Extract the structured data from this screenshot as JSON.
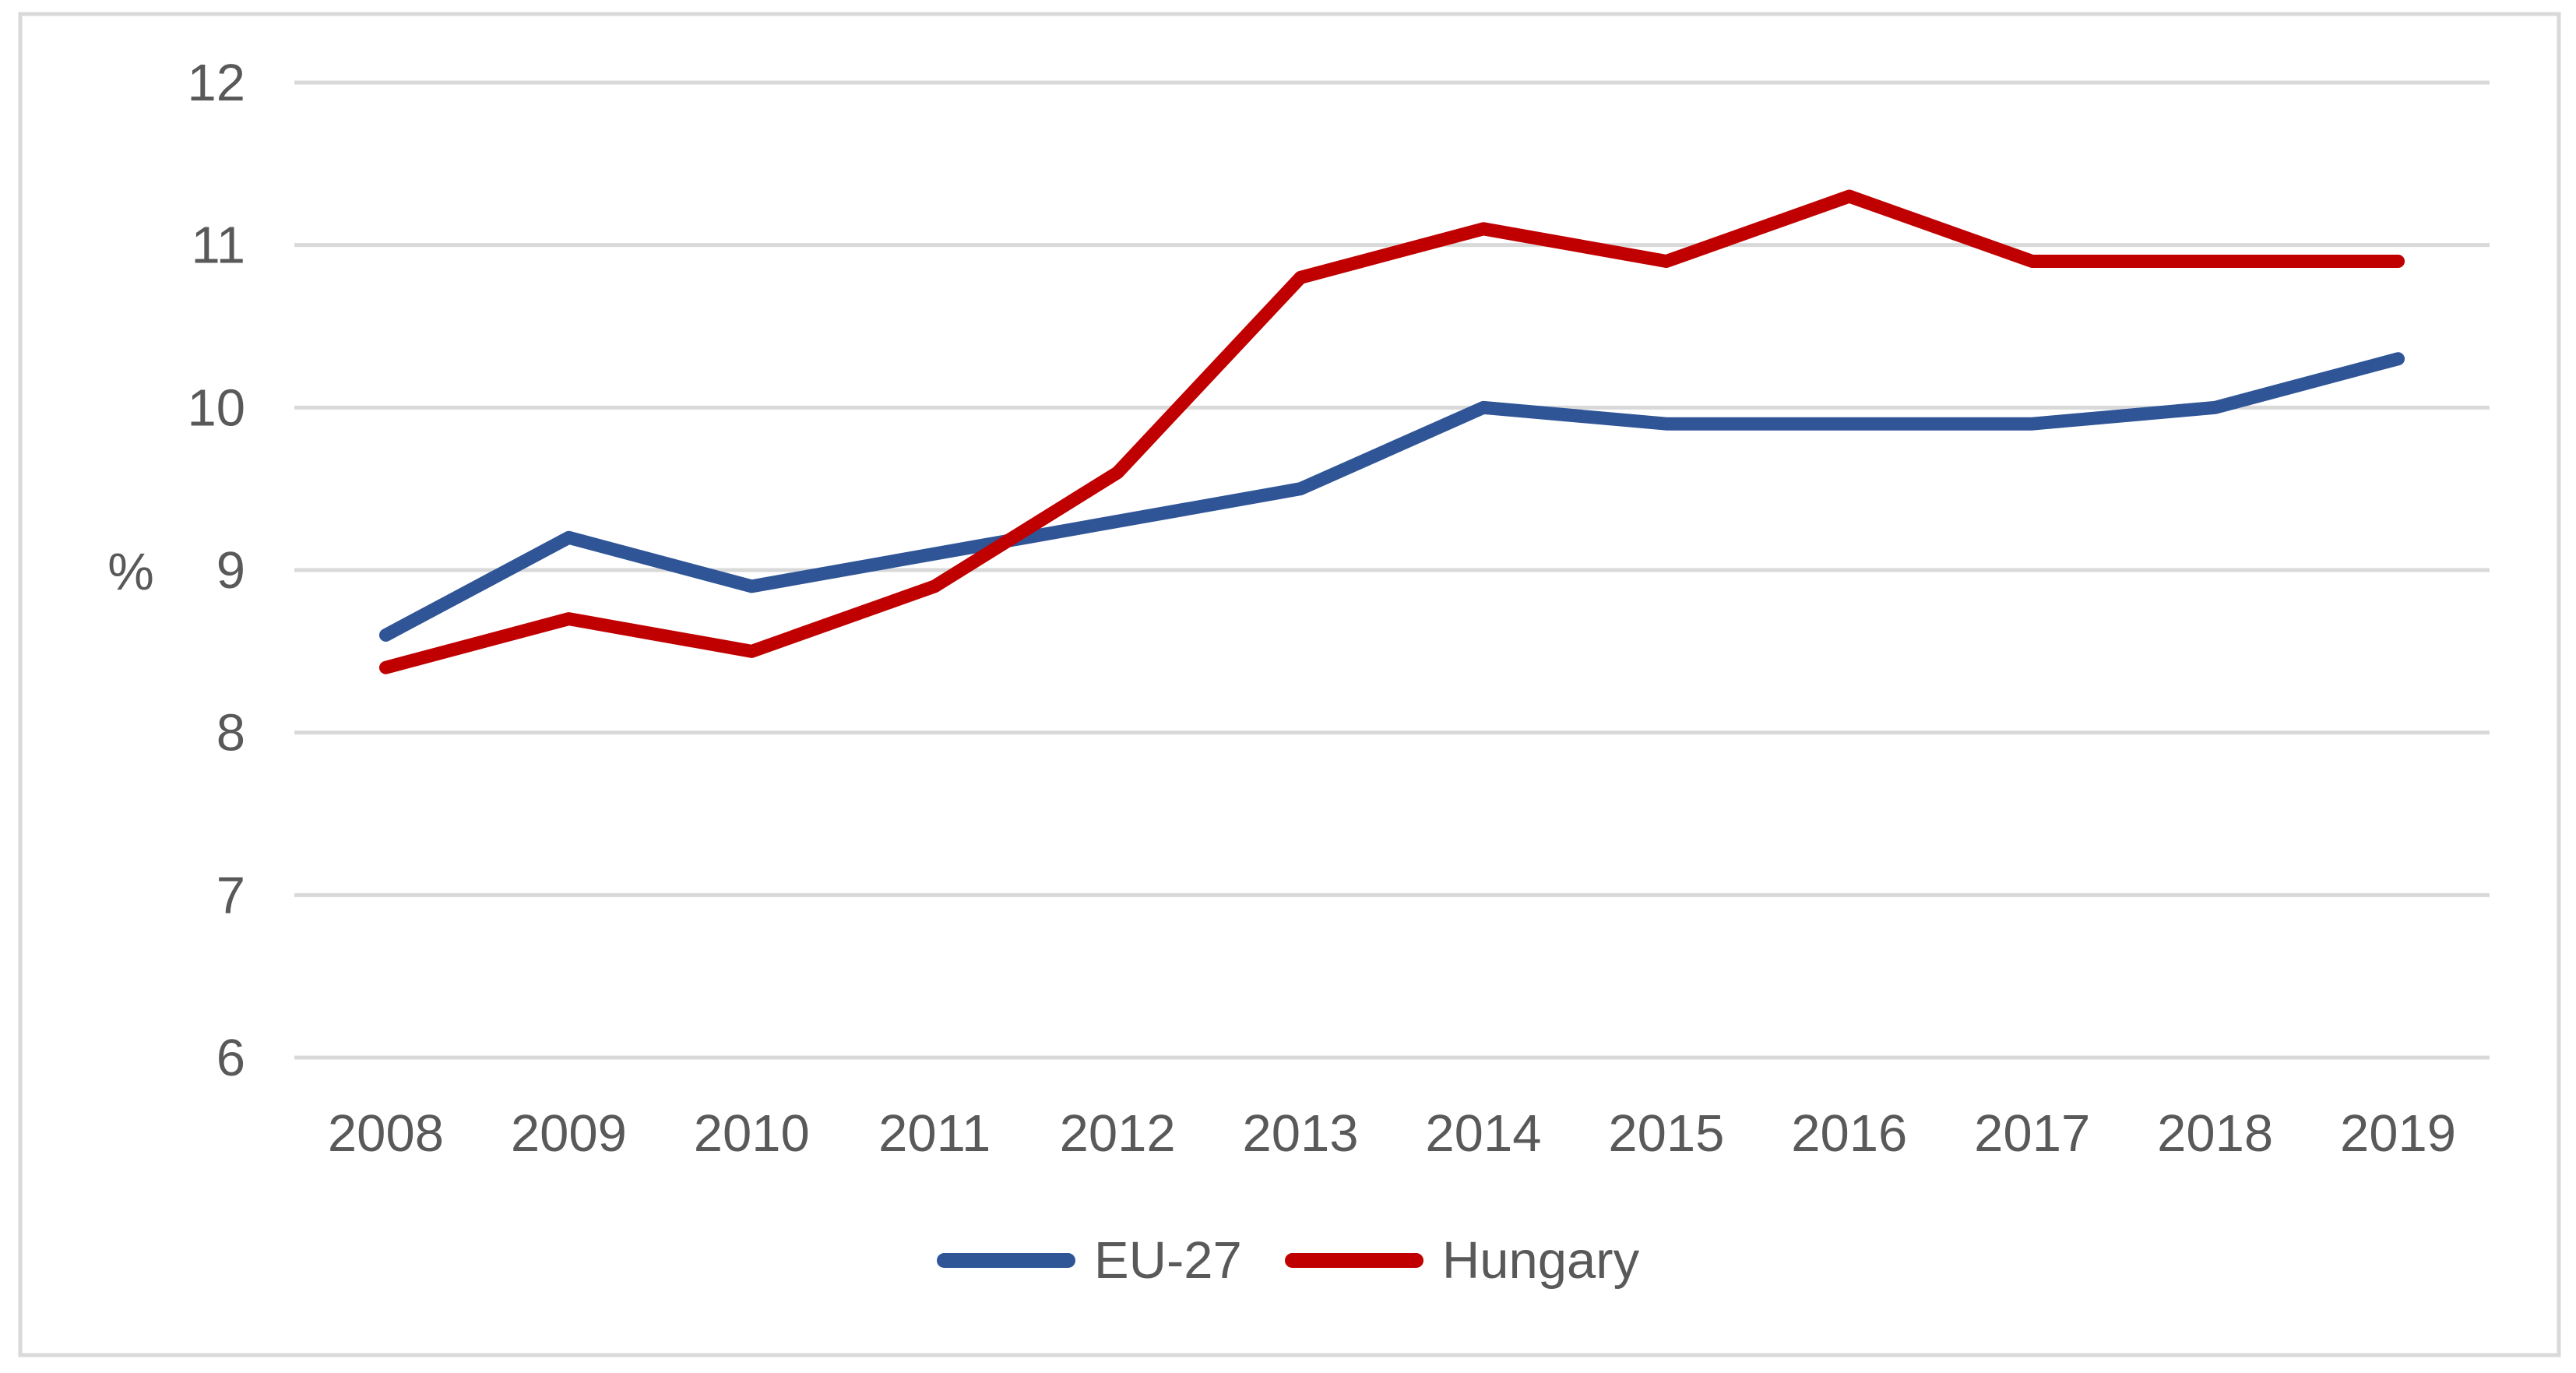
{
  "chart_data": {
    "type": "line",
    "categories": [
      "2008",
      "2009",
      "2010",
      "2011",
      "2012",
      "2013",
      "2014",
      "2015",
      "2016",
      "2017",
      "2018",
      "2019"
    ],
    "series": [
      {
        "name": "EU-27",
        "color": "#2F5597",
        "values": [
          8.6,
          9.2,
          8.9,
          9.1,
          9.3,
          9.5,
          10.0,
          9.9,
          9.9,
          9.9,
          10.0,
          10.3
        ]
      },
      {
        "name": "Hungary",
        "color": "#C00000",
        "values": [
          8.4,
          8.7,
          8.5,
          8.9,
          9.6,
          10.8,
          11.1,
          10.9,
          11.3,
          10.9,
          10.9,
          10.9
        ]
      }
    ],
    "ylabel": "%",
    "xlabel": "",
    "ylim": [
      6,
      12
    ],
    "y_ticks": [
      12,
      11,
      10,
      9,
      8,
      7,
      6
    ],
    "grid": "horizontal",
    "legend_position": "bottom",
    "colors": {
      "gridline": "#D9D9D9",
      "border": "#D9D9D9",
      "text": "#595959",
      "background": "#FFFFFF"
    }
  }
}
